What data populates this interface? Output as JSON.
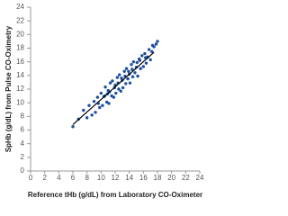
{
  "chart_data": {
    "type": "scatter",
    "x_label": "Reference tHb (g/dL) from Laboratory CO-Oximeter",
    "y_label": "SpHb (g/dL) from Pulse CO-Oximetry",
    "xlim": [
      0,
      24
    ],
    "ylim": [
      0,
      24
    ],
    "xticks": [
      0,
      2,
      4,
      6,
      8,
      10,
      12,
      14,
      16,
      18,
      20,
      22,
      24
    ],
    "yticks": [
      0,
      2,
      4,
      6,
      8,
      10,
      12,
      14,
      16,
      18,
      20,
      22,
      24
    ],
    "grid": false,
    "color": "#1d4f9c",
    "x": [
      6.0,
      6.8,
      7.5,
      8.0,
      8.3,
      8.7,
      9.0,
      9.2,
      9.5,
      9.8,
      10.0,
      10.2,
      10.4,
      10.6,
      10.8,
      11.0,
      11.1,
      11.3,
      11.5,
      11.6,
      11.8,
      12.0,
      12.1,
      12.3,
      12.5,
      12.6,
      12.8,
      13.0,
      13.1,
      13.3,
      13.5,
      13.6,
      13.8,
      14.0,
      14.1,
      14.3,
      14.5,
      14.6,
      14.8,
      15.0,
      15.2,
      15.4,
      15.6,
      15.8,
      16.0,
      16.2,
      16.4,
      16.6,
      16.8,
      17.0,
      17.2,
      17.5,
      17.8,
      18.0,
      10.5,
      11.2,
      11.9,
      12.4,
      12.9,
      13.4,
      13.9,
      14.4,
      15.1,
      15.5,
      9.6,
      10.9,
      16.3,
      17.3
    ],
    "values": [
      6.5,
      7.6,
      8.9,
      7.8,
      9.6,
      8.2,
      10.2,
      8.6,
      10.8,
      9.3,
      11.4,
      9.6,
      10.9,
      12.3,
      10.1,
      11.8,
      9.9,
      12.9,
      11.0,
      13.2,
      10.8,
      12.6,
      11.4,
      13.7,
      12.0,
      14.1,
      11.7,
      13.3,
      12.2,
      14.6,
      12.8,
      15.0,
      13.5,
      14.2,
      12.9,
      15.6,
      13.8,
      16.0,
      14.4,
      15.2,
      13.9,
      16.4,
      15.0,
      16.9,
      15.3,
      17.2,
      15.8,
      16.7,
      17.8,
      16.3,
      17.5,
      18.2,
      18.6,
      19.0,
      11.0,
      11.6,
      12.2,
      12.9,
      13.6,
      13.9,
      14.6,
      14.9,
      15.9,
      16.2,
      9.9,
      11.3,
      16.6,
      18.4
    ],
    "fit_line": {
      "x": [
        6.0,
        17.5
      ],
      "values": [
        6.8,
        17.4
      ],
      "color": "#000000"
    }
  }
}
